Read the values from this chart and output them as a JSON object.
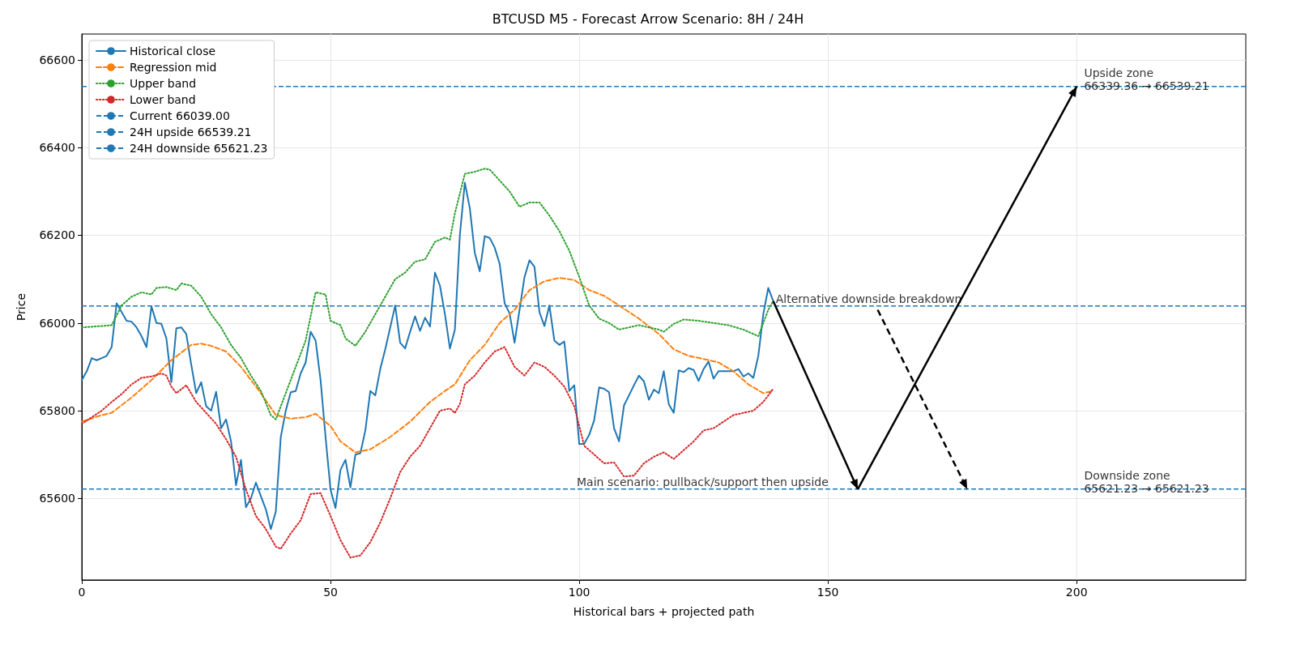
{
  "chart_data": {
    "type": "line",
    "title": "BTCUSD M5 - Forecast Arrow Scenario: 8H / 24H",
    "xlabel": "Historical bars + projected path",
    "ylabel": "Price",
    "xlim": [
      0,
      234
    ],
    "xticks": [
      0,
      50,
      100,
      150,
      200
    ],
    "ylim": [
      65414,
      66659
    ],
    "yticks": [
      65600,
      65800,
      66000,
      66200,
      66400,
      66600
    ],
    "grid": true,
    "legend": "top left",
    "marker": "none",
    "series": [
      {
        "name": "Historical close",
        "color": "#1f77b4",
        "line_style": "solid",
        "x": [
          0,
          1,
          2,
          3,
          4,
          5,
          6,
          7,
          8,
          9,
          10,
          11,
          12,
          13,
          14,
          15,
          16,
          17,
          18,
          19,
          20,
          21,
          22,
          23,
          24,
          25,
          26,
          27,
          28,
          29,
          30,
          31,
          32,
          33,
          34,
          35,
          36,
          37,
          38,
          39,
          40,
          41,
          42,
          43,
          44,
          45,
          46,
          47,
          48,
          49,
          50,
          51,
          52,
          53,
          54,
          55,
          56,
          57,
          58,
          59,
          60,
          61,
          62,
          63,
          64,
          65,
          66,
          67,
          68,
          69,
          70,
          71,
          72,
          73,
          74,
          75,
          76,
          77,
          78,
          79,
          80,
          81,
          82,
          83,
          84,
          85,
          86,
          87,
          88,
          89,
          90,
          91,
          92,
          93,
          94,
          95,
          96,
          97,
          98,
          99,
          100,
          101,
          102,
          103,
          104,
          105,
          106,
          107,
          108,
          109,
          110,
          111,
          112,
          113,
          114,
          115,
          116,
          117,
          118,
          119,
          120,
          121,
          122,
          123,
          124,
          125,
          126,
          127,
          128,
          129,
          130,
          131,
          132,
          133,
          134,
          135,
          136,
          137,
          138,
          139
        ],
        "values": [
          65870,
          65890,
          65920,
          65915,
          65920,
          65925,
          65945,
          66045,
          66025,
          66005,
          66003,
          65990,
          65970,
          65945,
          66038,
          66000,
          65998,
          65965,
          65865,
          65988,
          65990,
          65975,
          65905,
          65840,
          65865,
          65810,
          65800,
          65843,
          65760,
          65780,
          65730,
          65630,
          65688,
          65580,
          65600,
          65636,
          65605,
          65575,
          65530,
          65570,
          65740,
          65800,
          65842,
          65845,
          65885,
          65910,
          65980,
          65960,
          65870,
          65740,
          65620,
          65578,
          65665,
          65688,
          65625,
          65700,
          65703,
          65755,
          65845,
          65835,
          65895,
          65940,
          65990,
          66040,
          65955,
          65942,
          65980,
          66015,
          65982,
          66012,
          65992,
          66115,
          66085,
          66020,
          65942,
          65985,
          66200,
          66320,
          66262,
          66160,
          66118,
          66198,
          66194,
          66172,
          66135,
          66045,
          66022,
          65955,
          66030,
          66105,
          66143,
          66128,
          66025,
          65993,
          66040,
          65960,
          65950,
          65958,
          65845,
          65858,
          65724,
          65725,
          65745,
          65778,
          65853,
          65850,
          65842,
          65760,
          65730,
          65812,
          65835,
          65858,
          65880,
          65867,
          65825,
          65848,
          65840,
          65890,
          65815,
          65795,
          65892,
          65888,
          65897,
          65893,
          65868,
          65895,
          65912,
          65873,
          65890,
          65890,
          65890,
          65890,
          65895,
          65878,
          65885,
          65875,
          65925,
          66020,
          66080,
          66050
        ]
      },
      {
        "name": "Regression mid",
        "color": "#ff7f0e",
        "line_style": "dashed",
        "x": [
          0,
          4,
          6,
          10,
          14,
          18,
          22,
          24,
          26,
          29,
          32,
          36,
          39,
          42,
          45,
          47,
          50,
          52,
          55,
          58,
          62,
          66,
          70,
          73,
          75,
          78,
          81,
          84,
          87,
          90,
          93,
          96,
          99,
          102,
          105,
          108,
          112,
          116,
          119,
          122,
          125,
          128,
          131,
          134,
          137,
          139
        ],
        "values": [
          65775,
          65790,
          65795,
          65830,
          65870,
          65915,
          65950,
          65953,
          65948,
          65935,
          65900,
          65840,
          65790,
          65782,
          65785,
          65793,
          65765,
          65730,
          65705,
          65712,
          65740,
          65775,
          65820,
          65845,
          65860,
          65915,
          65950,
          66000,
          66030,
          66075,
          66095,
          66103,
          66098,
          66075,
          66062,
          66040,
          66010,
          65975,
          65940,
          65925,
          65918,
          65910,
          65890,
          65860,
          65840,
          65845
        ]
      },
      {
        "name": "Upper band",
        "color": "#2ca02c",
        "line_style": "dotted",
        "x": [
          0,
          4,
          6,
          8,
          10,
          12,
          14,
          15,
          17,
          19,
          20,
          22,
          24,
          26,
          28,
          30,
          32,
          34,
          36,
          38,
          39,
          41,
          43,
          45,
          47,
          49,
          50,
          52,
          53,
          55,
          57,
          59,
          61,
          63,
          65,
          67,
          69,
          71,
          73,
          74,
          75,
          77,
          79,
          81,
          82,
          84,
          86,
          88,
          90,
          92,
          94,
          96,
          98,
          100,
          102,
          104,
          106,
          108,
          110,
          112,
          114,
          116,
          117,
          119,
          121,
          124,
          127,
          130,
          133,
          135,
          136,
          138,
          139
        ],
        "values": [
          65990,
          65993,
          65995,
          66040,
          66060,
          66070,
          66065,
          66080,
          66082,
          66075,
          66090,
          66085,
          66060,
          66020,
          65990,
          65950,
          65920,
          65880,
          65845,
          65790,
          65780,
          65840,
          65900,
          65960,
          66070,
          66065,
          66005,
          65995,
          65965,
          65948,
          65980,
          66020,
          66060,
          66100,
          66115,
          66140,
          66145,
          66185,
          66195,
          66190,
          66250,
          66340,
          66345,
          66352,
          66350,
          66325,
          66300,
          66265,
          66275,
          66275,
          66245,
          66210,
          66165,
          66105,
          66040,
          66010,
          66000,
          65985,
          65990,
          65995,
          65990,
          65985,
          65980,
          65998,
          66008,
          66005,
          66000,
          65995,
          65985,
          65975,
          65970,
          66030,
          66050
        ]
      },
      {
        "name": "Lower band",
        "color": "#d62728",
        "line_style": "dotted",
        "x": [
          0,
          2,
          4,
          6,
          8,
          10,
          12,
          14,
          16,
          17,
          18,
          19,
          21,
          23,
          25,
          27,
          29,
          31,
          33,
          35,
          37,
          39,
          40,
          42,
          44,
          46,
          48,
          50,
          52,
          54,
          56,
          58,
          60,
          62,
          64,
          66,
          68,
          70,
          72,
          74,
          75,
          76,
          77,
          79,
          81,
          83,
          85,
          87,
          89,
          91,
          93,
          95,
          97,
          99,
          101,
          103,
          105,
          107,
          109,
          111,
          113,
          115,
          117,
          119,
          121,
          123,
          125,
          127,
          129,
          131,
          133,
          135,
          137,
          139
        ],
        "values": [
          65770,
          65785,
          65800,
          65820,
          65838,
          65860,
          65875,
          65878,
          65885,
          65880,
          65855,
          65840,
          65858,
          65820,
          65795,
          65770,
          65735,
          65695,
          65620,
          65560,
          65530,
          65490,
          65485,
          65520,
          65550,
          65610,
          65612,
          65560,
          65505,
          65465,
          65470,
          65500,
          65545,
          65600,
          65660,
          65695,
          65720,
          65760,
          65800,
          65805,
          65795,
          65815,
          65860,
          65880,
          65910,
          65935,
          65945,
          65900,
          65880,
          65910,
          65900,
          65880,
          65855,
          65810,
          65720,
          65700,
          65680,
          65682,
          65650,
          65652,
          65680,
          65695,
          65705,
          65690,
          65710,
          65730,
          65755,
          65760,
          65775,
          65790,
          65795,
          65800,
          65820,
          65850
        ]
      },
      {
        "color": "#000000",
        "line_style": "solid",
        "x": [
          139,
          156
        ],
        "values": [
          66050,
          65621
        ]
      },
      {
        "color": "#000000",
        "line_style": "solid",
        "x": [
          156,
          200
        ],
        "values": [
          65621,
          66539
        ]
      },
      {
        "color": "#000000",
        "line_style": "dashed",
        "x": [
          160,
          178
        ],
        "values": [
          66030,
          65621
        ]
      }
    ],
    "ref_lines": [
      {
        "axis": "y",
        "value": 66039,
        "label": "Current 66039.00",
        "color": "#1f77b4",
        "line_style": "dashed"
      },
      {
        "axis": "y",
        "value": 66539.21,
        "label": "24H upside 66539.21",
        "color": "#1f77b4",
        "line_style": "dashed"
      },
      {
        "axis": "y",
        "value": 65621.23,
        "label": "24H downside 65621.23",
        "color": "#1f77b4",
        "line_style": "dashed"
      }
    ],
    "annotations": [
      {
        "text": "Upside zone\n66339.36 → 66539.21",
        "x": 201.5,
        "y": 66539.21
      },
      {
        "text": "Downside zone\n65621.23 → 65621.23",
        "x": 201.5,
        "y": 65621.23
      },
      {
        "text": "Alternative downside breakdown",
        "x": 139.5,
        "y": 66039
      },
      {
        "text": "Main scenario: pullback/support then upside",
        "x": 99.5,
        "y": 65621.23
      }
    ]
  }
}
